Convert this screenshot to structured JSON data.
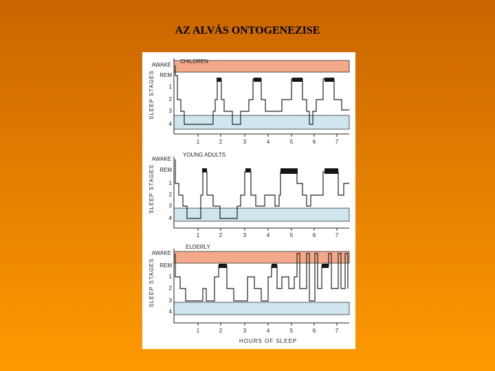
{
  "title": "AZ ALVÁS ONTOGENEZISE",
  "figure": {
    "panels": [
      {
        "label": "CHILDREN",
        "stages": [
          "AWAKE",
          "REM",
          "1",
          "2",
          "3",
          "4"
        ],
        "y_axis_title": "SLEEP STAGES",
        "hours": [
          "1",
          "2",
          "3",
          "4",
          "5",
          "6",
          "7"
        ]
      },
      {
        "label": "YOUNG ADULTS",
        "stages": [
          "AWAKE",
          "REM",
          "1",
          "2",
          "3",
          "4"
        ],
        "y_axis_title": "SLEEP STAGES",
        "hours": [
          "1",
          "2",
          "3",
          "4",
          "5",
          "6",
          "7"
        ]
      },
      {
        "label": "ELDERLY",
        "stages": [
          "AWAKE",
          "REM",
          "1",
          "2",
          "3",
          "4"
        ],
        "y_axis_title": "SLEEP STAGES",
        "hours": [
          "1",
          "2",
          "3",
          "4",
          "5",
          "6",
          "7"
        ]
      }
    ],
    "x_axis_title": "HOURS OF SLEEP"
  }
}
